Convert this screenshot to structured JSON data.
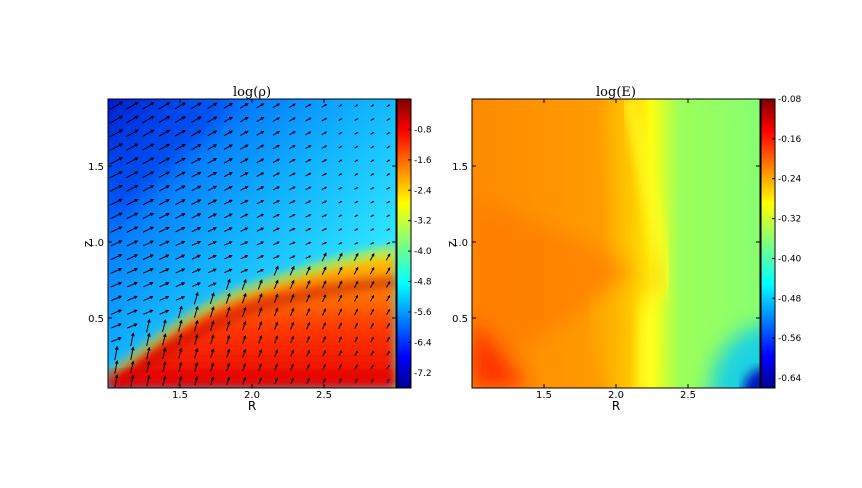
{
  "chart_data": [
    {
      "type": "heatmap",
      "title": "log(ρ)",
      "xlabel": "R",
      "ylabel": "z",
      "xlim": [
        1.0,
        3.0
      ],
      "ylim": [
        0.05,
        1.95
      ],
      "xticks": [
        "1.5",
        "2.0",
        "2.5"
      ],
      "yticks": [
        "0.5",
        "1.0",
        "1.5"
      ],
      "colorbar": {
        "ticks": [
          "-0.8",
          "-1.6",
          "-2.4",
          "-3.2",
          "-4.0",
          "-4.8",
          "-5.6",
          "-6.4",
          "-7.2"
        ],
        "range": [
          -7.6,
          0.0
        ]
      },
      "overlay": "velocity vector arrows (quiver)",
      "colormap": "jet"
    },
    {
      "type": "heatmap",
      "title": "log(E)",
      "xlabel": "R",
      "ylabel": "z",
      "xlim": [
        1.0,
        3.0
      ],
      "ylim": [
        0.05,
        1.95
      ],
      "xticks": [
        "1.5",
        "2.0",
        "2.5"
      ],
      "yticks": [
        "0.5",
        "1.0",
        "1.5"
      ],
      "colorbar": {
        "ticks": [
          "-0.08",
          "-0.16",
          "-0.24",
          "-0.32",
          "-0.40",
          "-0.48",
          "-0.56",
          "-0.64"
        ],
        "range": [
          -0.66,
          -0.08
        ]
      },
      "colormap": "jet"
    }
  ]
}
